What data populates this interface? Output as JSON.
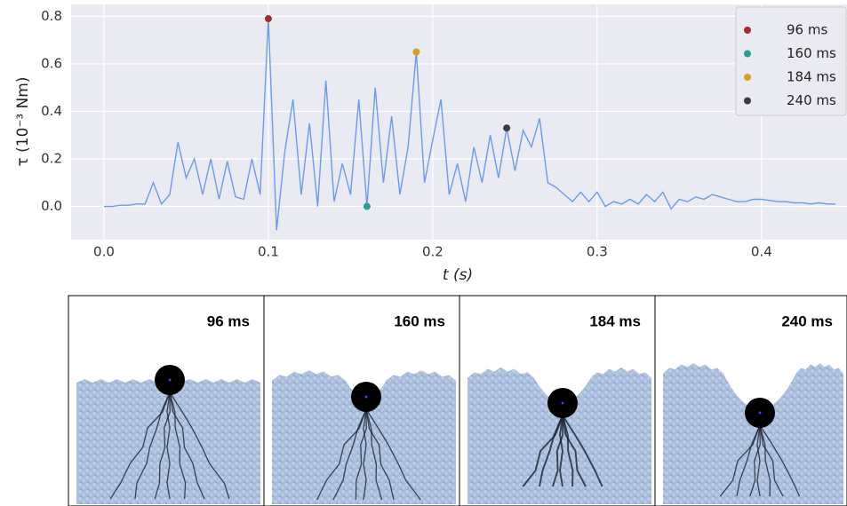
{
  "chart_data": {
    "type": "line",
    "xlabel": "t (s)",
    "ylabel": "τ (10⁻³ Nm)",
    "xlim": [
      -0.02,
      0.452
    ],
    "ylim": [
      -0.14,
      0.85
    ],
    "xticks": [
      {
        "value": 0,
        "label": "0.0"
      },
      {
        "value": 0.1,
        "label": "0.1"
      },
      {
        "value": 0.2,
        "label": "0.2"
      },
      {
        "value": 0.3,
        "label": "0.3"
      },
      {
        "value": 0.4,
        "label": "0.4"
      }
    ],
    "yticks": [
      {
        "value": 0,
        "label": "0.0"
      },
      {
        "value": 0.2,
        "label": "0.2"
      },
      {
        "value": 0.4,
        "label": "0.4"
      },
      {
        "value": 0.6,
        "label": "0.6"
      },
      {
        "value": 0.8,
        "label": "0.8"
      }
    ],
    "grid": true,
    "legend": "upper right",
    "series": [
      {
        "color": "#6c9be8",
        "x": [
          0,
          0.005,
          0.01,
          0.015,
          0.02,
          0.025,
          0.03,
          0.035,
          0.04,
          0.045,
          0.05,
          0.055,
          0.06,
          0.065,
          0.07,
          0.075,
          0.08,
          0.085,
          0.09,
          0.095,
          0.1,
          0.105,
          0.11,
          0.115,
          0.12,
          0.125,
          0.13,
          0.135,
          0.14,
          0.145,
          0.15,
          0.155,
          0.16,
          0.165,
          0.17,
          0.175,
          0.18,
          0.185,
          0.19,
          0.195,
          0.2,
          0.205,
          0.21,
          0.215,
          0.22,
          0.225,
          0.23,
          0.235,
          0.24,
          0.245,
          0.25,
          0.255,
          0.26,
          0.265,
          0.27,
          0.275,
          0.28,
          0.285,
          0.29,
          0.295,
          0.3,
          0.305,
          0.31,
          0.315,
          0.32,
          0.325,
          0.33,
          0.335,
          0.34,
          0.345,
          0.35,
          0.355,
          0.36,
          0.365,
          0.37,
          0.375,
          0.38,
          0.385,
          0.39,
          0.395,
          0.4,
          0.405,
          0.41,
          0.415,
          0.42,
          0.425,
          0.43,
          0.435,
          0.44,
          0.445
        ],
        "values": [
          0,
          0,
          0.005,
          0.005,
          0.01,
          0.01,
          0.1,
          0.01,
          0.05,
          0.27,
          0.12,
          0.2,
          0.05,
          0.2,
          0.03,
          0.19,
          0.04,
          0.03,
          0.2,
          0.05,
          0.79,
          -0.1,
          0.23,
          0.45,
          0.05,
          0.35,
          0,
          0.53,
          0.02,
          0.18,
          0.05,
          0.45,
          0,
          0.5,
          0.1,
          0.38,
          0.05,
          0.25,
          0.65,
          0.1,
          0.28,
          0.45,
          0.05,
          0.18,
          0.02,
          0.25,
          0.1,
          0.3,
          0.12,
          0.33,
          0.15,
          0.32,
          0.25,
          0.37,
          0.1,
          0.08,
          0.05,
          0.02,
          0.06,
          0.02,
          0.06,
          0,
          0.02,
          0.01,
          0.03,
          0.01,
          0.05,
          0.02,
          0.06,
          -0.01,
          0.03,
          0.02,
          0.04,
          0.03,
          0.05,
          0.04,
          0.03,
          0.02,
          0.02,
          0.03,
          0.03,
          0.025,
          0.02,
          0.02,
          0.015,
          0.015,
          0.01,
          0.015,
          0.01,
          0.01
        ]
      }
    ],
    "markers": [
      {
        "name": "96 ms",
        "color": "#a82c2c",
        "x": 0.1,
        "y": 0.79
      },
      {
        "name": "160 ms",
        "color": "#2a9d8f",
        "x": 0.16,
        "y": 0
      },
      {
        "name": "184 ms",
        "color": "#d4a22a",
        "x": 0.19,
        "y": 0.65
      },
      {
        "name": "240 ms",
        "color": "#3c3c3c",
        "x": 0.245,
        "y": 0.33
      }
    ]
  },
  "panels": [
    {
      "label": "96 ms"
    },
    {
      "label": "160 ms"
    },
    {
      "label": "184 ms"
    },
    {
      "label": "240 ms"
    }
  ]
}
